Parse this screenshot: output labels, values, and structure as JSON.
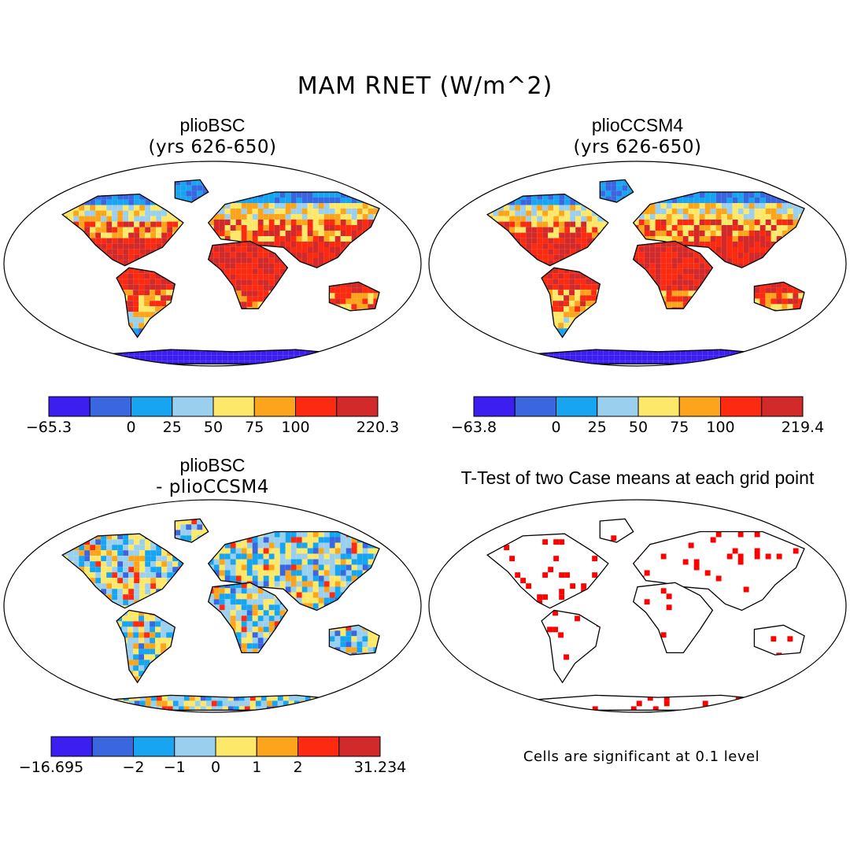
{
  "figure": {
    "title": "MAM RNET (W/m^2)"
  },
  "colors": {
    "scale": [
      "#3d1ef0",
      "#3a66e0",
      "#17a4f0",
      "#9ad0ee",
      "#fde86a",
      "#fca51c",
      "#fb2a10",
      "#d22a2a"
    ],
    "ocean": "#ffffff",
    "significant": "#ff0000"
  },
  "panels": [
    {
      "id": "top-left",
      "title": "plioBSC",
      "subtitle": "(yrs 626-650)",
      "colorbar": {
        "labels": [
          "-65.3",
          "0",
          "25",
          "50",
          "75",
          "100",
          "220.3"
        ]
      }
    },
    {
      "id": "top-right",
      "title": "plioCCSM4",
      "subtitle": "(yrs 626-650)",
      "colorbar": {
        "labels": [
          "-63.8",
          "0",
          "25",
          "50",
          "75",
          "100",
          "219.4"
        ]
      }
    },
    {
      "id": "bottom-left",
      "title": "plioBSC",
      "subtitle": "- plioCCSM4",
      "colorbar": {
        "labels": [
          "-16.695",
          "-2",
          "-1",
          "0",
          "1",
          "2",
          "31.234"
        ]
      }
    },
    {
      "id": "bottom-right",
      "title": "T-Test of two Case means at each grid point",
      "note": "Cells are significant at 0.1 level"
    }
  ]
}
